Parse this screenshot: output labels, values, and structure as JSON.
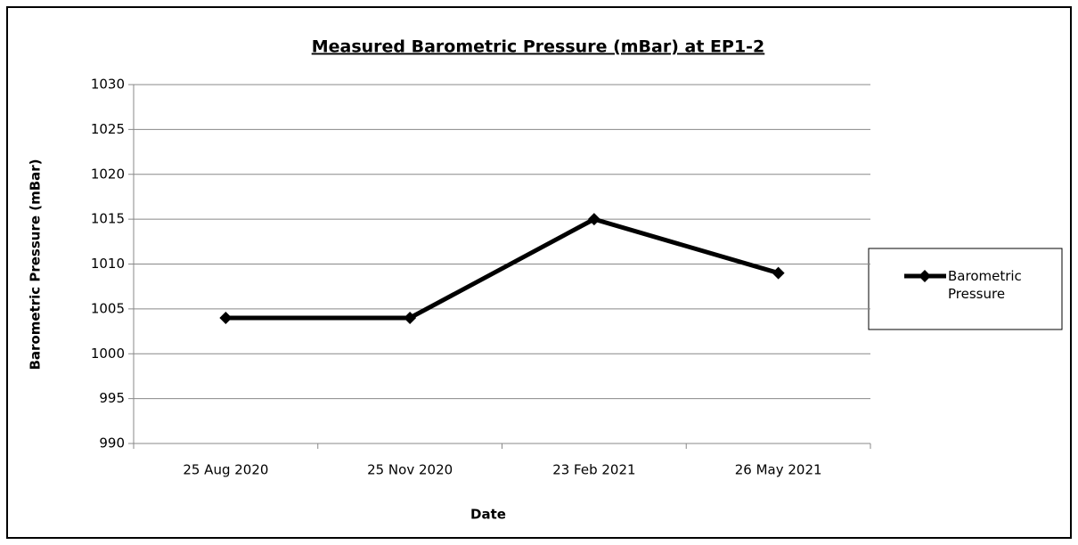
{
  "chart_data": {
    "type": "line",
    "title": "Measured Barometric Pressure (mBar) at EP1-2",
    "x_label": "Date",
    "y_label": "Barometric Pressure (mBar)",
    "categories": [
      "25 Aug 2020",
      "25 Nov 2020",
      "23 Feb 2021",
      "26 May 2021"
    ],
    "series": [
      {
        "name": "Barometric Pressure",
        "color": "#000000",
        "values": [
          1004,
          1004,
          1015,
          1009
        ]
      }
    ],
    "ylim": [
      990,
      1030
    ],
    "yticks": [
      990,
      995,
      1000,
      1005,
      1010,
      1015,
      1020,
      1025,
      1030
    ],
    "grid": true,
    "legend": "right",
    "marker": "diamond"
  }
}
